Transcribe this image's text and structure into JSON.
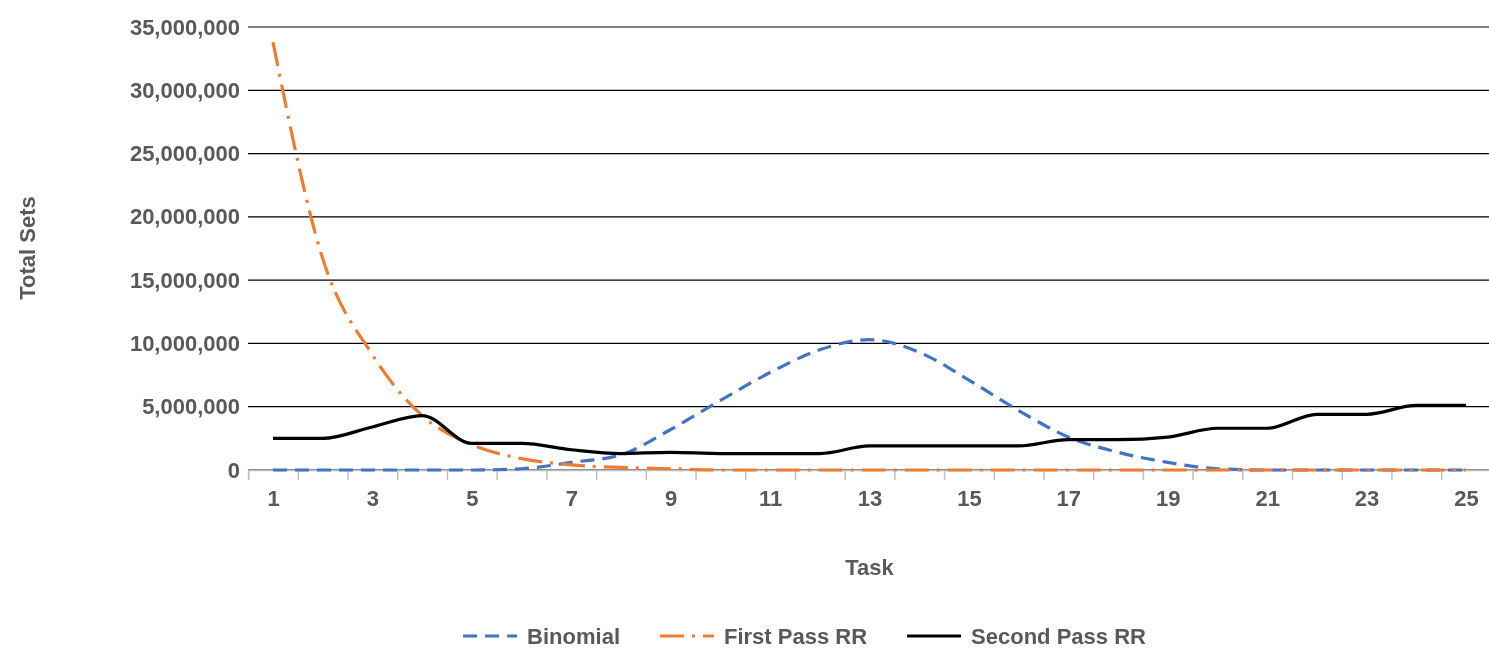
{
  "chart_data": {
    "type": "line",
    "xlabel": "Task",
    "ylabel": "Total Sets",
    "x": [
      1,
      2,
      3,
      4,
      5,
      6,
      7,
      8,
      9,
      10,
      11,
      12,
      13,
      14,
      15,
      16,
      17,
      18,
      19,
      20,
      21,
      22,
      23,
      24,
      25
    ],
    "xlim": [
      0.5,
      25.5
    ],
    "xticks": [
      {
        "value": 0.5,
        "label": null
      },
      1,
      {
        "value": 1.5,
        "label": null
      },
      {
        "value": 2.5,
        "label": null
      },
      3,
      {
        "value": 3.5,
        "label": null
      },
      {
        "value": 4.5,
        "label": null
      },
      5,
      {
        "value": 5.5,
        "label": null
      },
      {
        "value": 6.5,
        "label": null
      },
      7,
      {
        "value": 7.5,
        "label": null
      },
      {
        "value": 8.5,
        "label": null
      },
      9,
      {
        "value": 9.5,
        "label": null
      },
      {
        "value": 10.5,
        "label": null
      },
      11,
      {
        "value": 11.5,
        "label": null
      },
      {
        "value": 12.5,
        "label": null
      },
      13,
      {
        "value": 13.5,
        "label": null
      },
      {
        "value": 14.5,
        "label": null
      },
      15,
      {
        "value": 15.5,
        "label": null
      },
      {
        "value": 16.5,
        "label": null
      },
      17,
      {
        "value": 17.5,
        "label": null
      },
      {
        "value": 18.5,
        "label": null
      },
      19,
      {
        "value": 19.5,
        "label": null
      },
      {
        "value": 20.5,
        "label": null
      },
      21,
      {
        "value": 21.5,
        "label": null
      },
      {
        "value": 22.5,
        "label": null
      },
      23,
      {
        "value": 23.5,
        "label": null
      },
      {
        "value": 24.5,
        "label": null
      },
      25,
      {
        "value": 25.5,
        "label": null
      }
    ],
    "ylim": [
      0,
      35000000
    ],
    "yticks": [
      {
        "value": 0,
        "label": "0"
      },
      {
        "value": 5000000,
        "label": "5,000,000"
      },
      {
        "value": 10000000,
        "label": "10,000,000"
      },
      {
        "value": 15000000,
        "label": "15,000,000"
      },
      {
        "value": 20000000,
        "label": "20,000,000"
      },
      {
        "value": 25000000,
        "label": "25,000,000"
      },
      {
        "value": 30000000,
        "label": "30,000,000"
      },
      {
        "value": 35000000,
        "label": "35,000,000"
      }
    ],
    "grid": "y",
    "legend": "bottom",
    "marker": "none",
    "series": [
      {
        "name": "Binomial",
        "color": "#4472c4",
        "line_style": "dashed",
        "values": [
          0,
          0,
          0,
          0,
          0,
          100000,
          600000,
          1200000,
          3200000,
          5500000,
          7700000,
          9500000,
          10300000,
          9300000,
          7100000,
          4700000,
          2600000,
          1400000,
          600000,
          100000,
          0,
          0,
          0,
          0,
          0
        ]
      },
      {
        "name": "First Pass RR",
        "color": "#ed7d31",
        "line_style": "dashdot",
        "values": [
          33800000,
          16700000,
          9100000,
          4300000,
          2000000,
          900000,
          400000,
          200000,
          100000,
          0,
          0,
          0,
          0,
          0,
          0,
          0,
          0,
          0,
          0,
          0,
          0,
          0,
          0,
          0,
          0
        ]
      },
      {
        "name": "Second Pass RR",
        "color": "#000000",
        "line_style": "solid",
        "values": [
          2500000,
          2500000,
          3400000,
          4300000,
          2100000,
          2100000,
          1600000,
          1300000,
          1400000,
          1300000,
          1300000,
          1300000,
          1900000,
          1900000,
          1900000,
          1900000,
          2400000,
          2400000,
          2600000,
          3300000,
          3300000,
          4400000,
          4400000,
          5100000,
          5100000
        ]
      }
    ]
  }
}
